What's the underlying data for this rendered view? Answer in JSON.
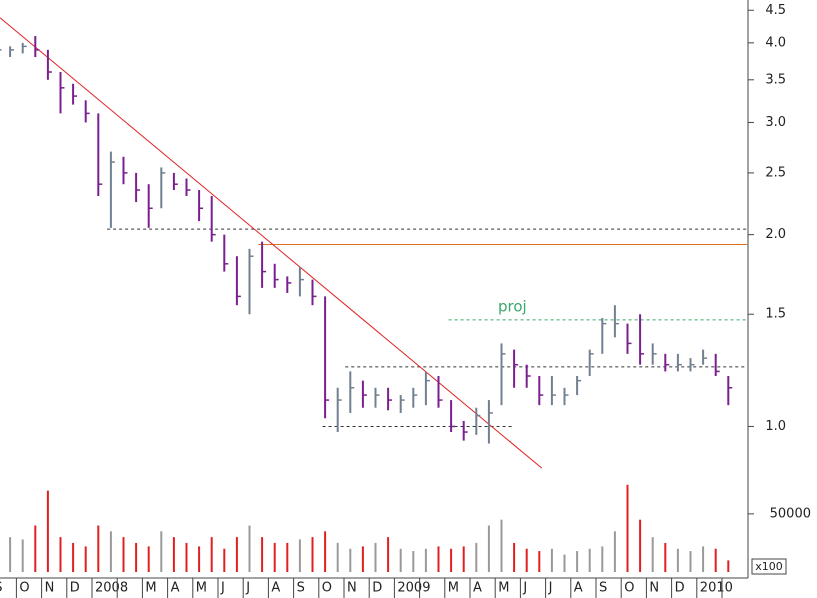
{
  "chart_data": {
    "type": "ohlc",
    "categories": [
      "S",
      null,
      "O",
      null,
      "N",
      null,
      "D",
      null,
      "2008",
      null,
      null,
      null,
      "M",
      null,
      "A",
      null,
      "M",
      null,
      "J",
      null,
      "J",
      null,
      "A",
      null,
      "S",
      null,
      "O",
      null,
      "N",
      null,
      "D",
      null,
      "2009",
      null,
      null,
      null,
      "M",
      null,
      "A",
      null,
      "M",
      null,
      "J",
      null,
      "J",
      null,
      "A",
      null,
      "S",
      null,
      "O",
      null,
      "N",
      null,
      "D",
      null,
      "2010",
      null,
      null
    ],
    "high": [
      4.0,
      3.95,
      4.0,
      4.1,
      3.9,
      3.6,
      3.45,
      3.25,
      3.1,
      2.7,
      2.65,
      2.5,
      2.4,
      2.55,
      2.5,
      2.45,
      2.35,
      2.3,
      2.0,
      1.85,
      1.9,
      1.95,
      1.8,
      1.72,
      1.78,
      1.7,
      1.6,
      1.15,
      1.22,
      1.18,
      1.15,
      1.15,
      1.12,
      1.15,
      1.22,
      1.2,
      1.1,
      1.02,
      1.07,
      1.1,
      1.35,
      1.32,
      1.25,
      1.2,
      1.2,
      1.15,
      1.2,
      1.32,
      1.48,
      1.55,
      1.45,
      1.5,
      1.35,
      1.3,
      1.3,
      1.28,
      1.32,
      1.3,
      1.2
    ],
    "low": [
      3.3,
      3.8,
      3.85,
      3.8,
      3.5,
      3.1,
      3.2,
      3.0,
      2.3,
      2.05,
      2.4,
      2.25,
      2.05,
      2.2,
      2.35,
      2.3,
      2.1,
      1.95,
      1.75,
      1.55,
      1.5,
      1.65,
      1.65,
      1.62,
      1.6,
      1.55,
      1.03,
      0.98,
      1.05,
      1.07,
      1.07,
      1.06,
      1.05,
      1.07,
      1.08,
      1.07,
      0.98,
      0.95,
      0.97,
      0.94,
      1.08,
      1.15,
      1.15,
      1.08,
      1.08,
      1.08,
      1.12,
      1.2,
      1.3,
      1.38,
      1.3,
      1.25,
      1.25,
      1.22,
      1.22,
      1.22,
      1.25,
      1.2,
      1.08
    ],
    "close": [
      3.9,
      3.9,
      3.95,
      3.9,
      3.6,
      3.4,
      3.3,
      3.1,
      2.4,
      2.6,
      2.5,
      2.35,
      2.2,
      2.5,
      2.4,
      2.35,
      2.2,
      2.0,
      1.8,
      1.6,
      1.85,
      1.75,
      1.7,
      1.68,
      1.7,
      1.6,
      1.1,
      1.1,
      1.15,
      1.12,
      1.12,
      1.1,
      1.1,
      1.12,
      1.18,
      1.1,
      1.0,
      0.98,
      1.04,
      1.05,
      1.3,
      1.25,
      1.2,
      1.12,
      1.12,
      1.12,
      1.18,
      1.3,
      1.45,
      1.45,
      1.35,
      1.3,
      1.3,
      1.25,
      1.25,
      1.25,
      1.28,
      1.22,
      1.15
    ],
    "up_color": "#708090",
    "down_color": "#7a1f8f",
    "log_scale": true,
    "ylim": [
      0.83,
      4.67
    ],
    "yticks": [
      {
        "value": 1.0,
        "label": "1.0"
      },
      1.5,
      {
        "value": 2.0,
        "label": "2.0"
      },
      2.5,
      {
        "value": 3.0,
        "label": "3.0"
      },
      3.5,
      {
        "value": 4.0,
        "label": "4.0"
      },
      4.5
    ],
    "trendlines": [
      {
        "start": [
          0.2,
          4.38
        ],
        "end": [
          43.2,
          0.86
        ],
        "color": "#e02020"
      }
    ],
    "levels": [
      {
        "value": 2.04,
        "from": 8.7,
        "to": 59.5,
        "color": "#333333",
        "dashed": true
      },
      {
        "value": 1.93,
        "from": 20.7,
        "to": 59.5,
        "color": "#e07020",
        "dashed": false
      },
      {
        "value": 1.24,
        "from": 27.6,
        "to": 59.5,
        "color": "#333333",
        "dashed": true
      },
      {
        "value": 1.0,
        "from": 25.8,
        "to": 40.8,
        "color": "#333333",
        "dashed": true
      },
      {
        "value": 1.47,
        "from": 35.8,
        "to": 59.5,
        "color": "#3aa86a",
        "dashed": true,
        "label": "proj"
      }
    ],
    "volume": {
      "values": [
        25000,
        30000,
        28000,
        40000,
        70000,
        30000,
        25000,
        22000,
        40000,
        35000,
        30000,
        25000,
        22000,
        35000,
        30000,
        25000,
        22000,
        30000,
        20000,
        30000,
        40000,
        30000,
        25000,
        25000,
        28000,
        30000,
        35000,
        25000,
        20000,
        22000,
        25000,
        30000,
        20000,
        18000,
        20000,
        22000,
        20000,
        22000,
        25000,
        40000,
        45000,
        25000,
        20000,
        18000,
        20000,
        15000,
        18000,
        20000,
        22000,
        35000,
        75000,
        45000,
        30000,
        25000,
        20000,
        18000,
        22000,
        20000,
        10000
      ],
      "ylim": [
        0,
        80000
      ],
      "yticks": [
        50000
      ],
      "unit_label": "x100",
      "up_color": "#999999",
      "down_color": "#e02020"
    }
  }
}
